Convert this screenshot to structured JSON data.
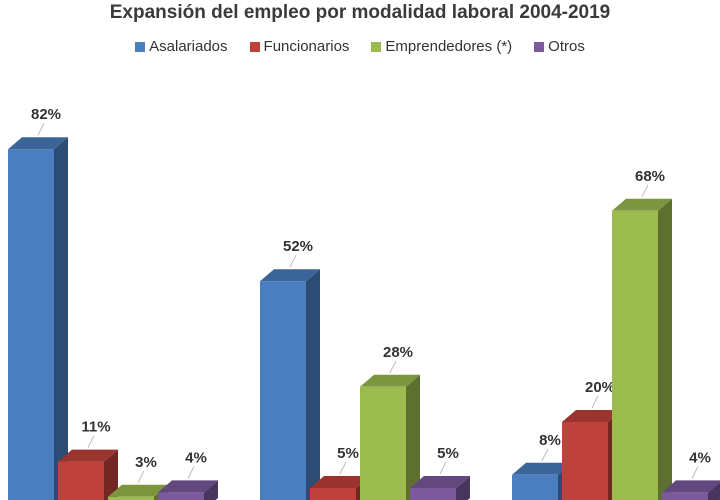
{
  "chart_data": {
    "type": "bar",
    "title": "Expansión del empleo por modalidad laboral 2004-2019",
    "categories": [
      "",
      "",
      ""
    ],
    "series": [
      {
        "name": "Asalariados",
        "color": "#4a7ebf",
        "values": [
          82,
          52,
          8
        ],
        "labels": [
          "82%",
          "52%",
          "8%"
        ]
      },
      {
        "name": "Funcionarios",
        "color": "#c0413b",
        "values": [
          11,
          5,
          20
        ],
        "labels": [
          "11%",
          "5%",
          "20%"
        ]
      },
      {
        "name": "Emprendedores (*)",
        "color": "#9bbb4f",
        "values": [
          3,
          28,
          68
        ],
        "labels": [
          "3%",
          "28%",
          "68%"
        ]
      },
      {
        "name": "Otros",
        "color": "#7a5a9c",
        "values": [
          4,
          5,
          4
        ],
        "labels": [
          "4%",
          "5%",
          "4%"
        ]
      }
    ],
    "legend_position": "top",
    "grid": false
  }
}
